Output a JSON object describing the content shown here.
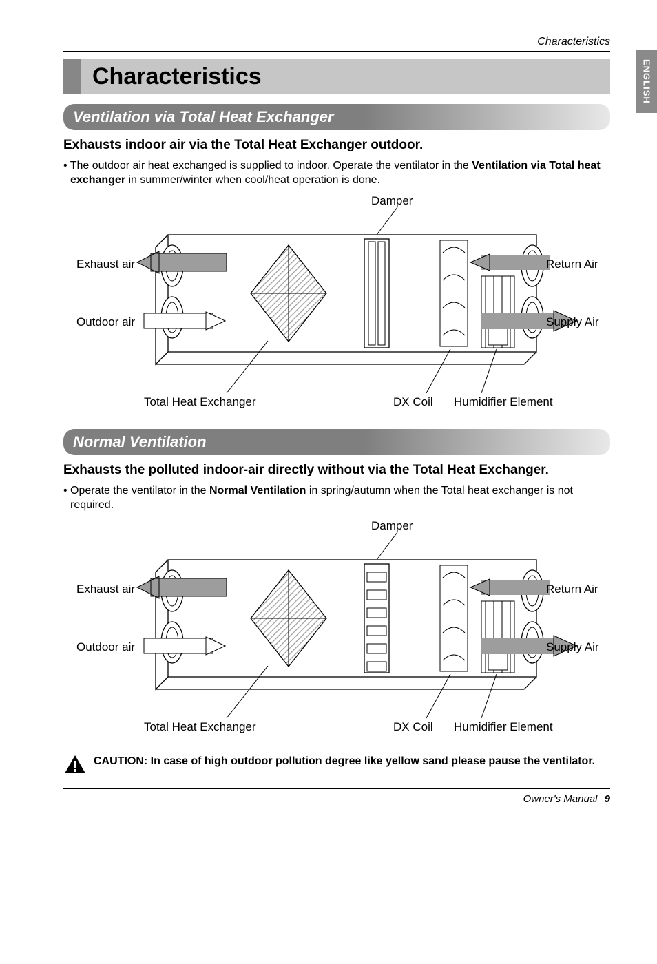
{
  "header": {
    "section_name": "Characteristics"
  },
  "side_tab": "ENGLISH",
  "title": "Characteristics",
  "section1": {
    "heading": "Ventilation via Total Heat Exchanger",
    "subheading": "Exhausts indoor air via the Total Heat Exchanger outdoor.",
    "bullet_prefix": "• The outdoor air heat exchanged is supplied to indoor. Operate the ventilator in the ",
    "bullet_bold": "Ventilation via Total heat exchanger",
    "bullet_suffix": " in summer/winter when cool/heat operation is done."
  },
  "section2": {
    "heading": "Normal Ventilation",
    "subheading": "Exhausts the polluted indoor-air directly without via the Total Heat Exchanger.",
    "bullet_prefix": "• Operate the ventilator in the ",
    "bullet_bold": "Normal Ventilation",
    "bullet_suffix": " in spring/autumn when the Total heat exchanger is not required."
  },
  "diagram": {
    "labels": {
      "damper": "Damper",
      "exhaust_air": "Exhaust air",
      "return_air": "Return Air",
      "outdoor_air": "Outdoor air",
      "supply_air": "Supply Air",
      "the": "Total Heat Exchanger",
      "dx_coil": "DX Coil",
      "humidifier": "Humidifier Element"
    },
    "colors": {
      "stroke": "#000000",
      "fill_box": "#ffffff",
      "hatch": "#9d9d9d",
      "exhaust_arrow": "#9d9d9d",
      "supply_arrow": "#9d9d9d",
      "label": "#000000"
    },
    "font_size_label": 17,
    "line_width": 1.3
  },
  "diagram2_damper_rotated": true,
  "caution": {
    "text": "CAUTION: In case of high outdoor pollution degree like yellow sand please pause the ventilator."
  },
  "footer": {
    "manual": "Owner's Manual",
    "page": "9"
  }
}
